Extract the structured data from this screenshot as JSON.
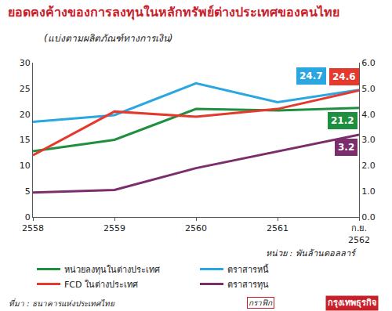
{
  "chart_data": {
    "type": "line",
    "title": "ยอดคงค้างของการลงทุนในหลักทรัพย์ต่างประเทศของคนไทย",
    "subtitle": "(แบ่งตามผลิตภัณฑ์ทางการเงิน)",
    "unit": "หน่วย : พันล้านดอลลาร์",
    "source": "ที่มา : ธนาคารแห่งประเทศไทย",
    "credit": {
      "label": "กราฟิก",
      "name": "กรุงเทพธุรกิจ"
    },
    "categories": [
      "2558",
      "2559",
      "2560",
      "2561",
      "ก.ย. 2562"
    ],
    "series": [
      {
        "name": "หน่วยลงทุนในต่างประเทศ",
        "color": "#1e8f3e",
        "values": [
          12.8,
          15.0,
          21.0,
          20.7,
          21.2
        ],
        "value_labels": [
          null,
          null,
          null,
          null,
          "21.2"
        ]
      },
      {
        "name": "ตราสารหนี้",
        "color": "#2aa7e1",
        "values": [
          18.5,
          19.8,
          26.0,
          22.3,
          24.7
        ],
        "value_labels": [
          null,
          null,
          null,
          null,
          "24.7"
        ]
      },
      {
        "name": "FCD ในต่างประเทศ",
        "color": "#e5392d",
        "values": [
          12.0,
          20.5,
          19.5,
          21.0,
          24.6
        ],
        "value_labels": [
          null,
          null,
          null,
          null,
          "24.6"
        ]
      },
      {
        "name": "ตราสารทุน",
        "color": "#7b2d6c",
        "axis": "y2",
        "values": [
          0.95,
          1.05,
          1.9,
          2.55,
          3.2
        ],
        "value_labels": [
          null,
          null,
          null,
          null,
          "3.2"
        ]
      }
    ],
    "ylim": [
      0,
      30
    ],
    "yticks": [
      0,
      5,
      10,
      15,
      20,
      25,
      30
    ],
    "y2lim": [
      0,
      6
    ],
    "y2ticks": [
      {
        "value": 0,
        "label": "0.0"
      },
      {
        "value": 1,
        "label": "1.0"
      },
      {
        "value": 2,
        "label": "2.0"
      },
      {
        "value": 3,
        "label": "3.0"
      },
      {
        "value": 4,
        "label": "4.0"
      },
      {
        "value": 5,
        "label": "5.0"
      },
      {
        "value": 6,
        "label": "6.0"
      }
    ],
    "grid": false,
    "legend": "bottom",
    "data_labels": true
  }
}
